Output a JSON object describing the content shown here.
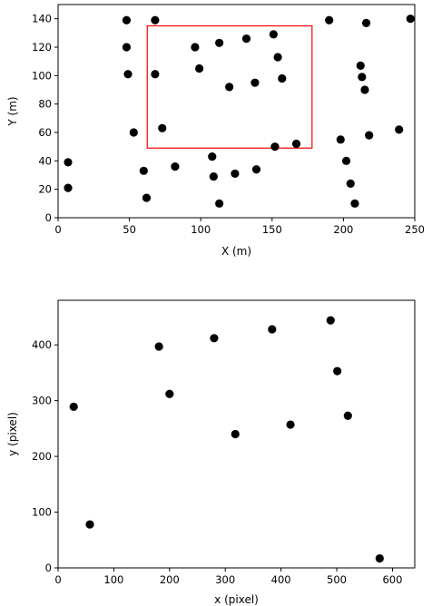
{
  "chart_data": [
    {
      "type": "scatter",
      "xlabel": "X (m)",
      "ylabel": "Y (m)",
      "xlim": [
        0,
        250
      ],
      "ylim": [
        0,
        150
      ],
      "x_ticks": [
        0,
        50,
        100,
        150,
        200,
        250
      ],
      "y_ticks": [
        0,
        20,
        40,
        60,
        80,
        100,
        120,
        140
      ],
      "grid": false,
      "marker_color": "#000000",
      "rectangle": {
        "x0": 62.5,
        "y0": 49,
        "x1": 178,
        "y1": 135,
        "color": "#ff0000"
      },
      "points": [
        [
          7,
          39
        ],
        [
          7,
          21
        ],
        [
          48,
          139
        ],
        [
          48,
          120
        ],
        [
          49,
          101
        ],
        [
          53,
          60
        ],
        [
          60,
          33
        ],
        [
          62,
          14
        ],
        [
          68,
          139
        ],
        [
          68,
          101
        ],
        [
          73,
          63
        ],
        [
          82,
          36
        ],
        [
          96,
          120
        ],
        [
          99,
          105
        ],
        [
          108,
          43
        ],
        [
          109,
          29
        ],
        [
          113,
          10
        ],
        [
          113,
          123
        ],
        [
          120,
          92
        ],
        [
          124,
          31
        ],
        [
          132,
          126
        ],
        [
          138,
          95
        ],
        [
          139,
          34
        ],
        [
          151,
          129
        ],
        [
          152,
          50
        ],
        [
          154,
          113
        ],
        [
          157,
          98
        ],
        [
          167,
          52
        ],
        [
          190,
          139
        ],
        [
          198,
          55
        ],
        [
          202,
          40
        ],
        [
          205,
          24
        ],
        [
          208,
          10
        ],
        [
          212,
          107
        ],
        [
          213,
          99
        ],
        [
          215,
          90
        ],
        [
          216,
          137
        ],
        [
          218,
          58
        ],
        [
          239,
          62
        ],
        [
          247,
          140
        ]
      ]
    },
    {
      "type": "scatter",
      "xlabel": "x (pixel)",
      "ylabel": "y (pixel)",
      "xlim": [
        0,
        640
      ],
      "ylim": [
        0,
        480
      ],
      "x_ticks": [
        0,
        100,
        200,
        300,
        400,
        500,
        600
      ],
      "y_ticks": [
        0,
        100,
        200,
        300,
        400
      ],
      "grid": false,
      "marker_color": "#000000",
      "points": [
        [
          28,
          289
        ],
        [
          57,
          78
        ],
        [
          181,
          397
        ],
        [
          200,
          312
        ],
        [
          280,
          412
        ],
        [
          318,
          240
        ],
        [
          384,
          428
        ],
        [
          417,
          257
        ],
        [
          489,
          444
        ],
        [
          501,
          353
        ],
        [
          520,
          273
        ],
        [
          577,
          17
        ]
      ]
    }
  ]
}
